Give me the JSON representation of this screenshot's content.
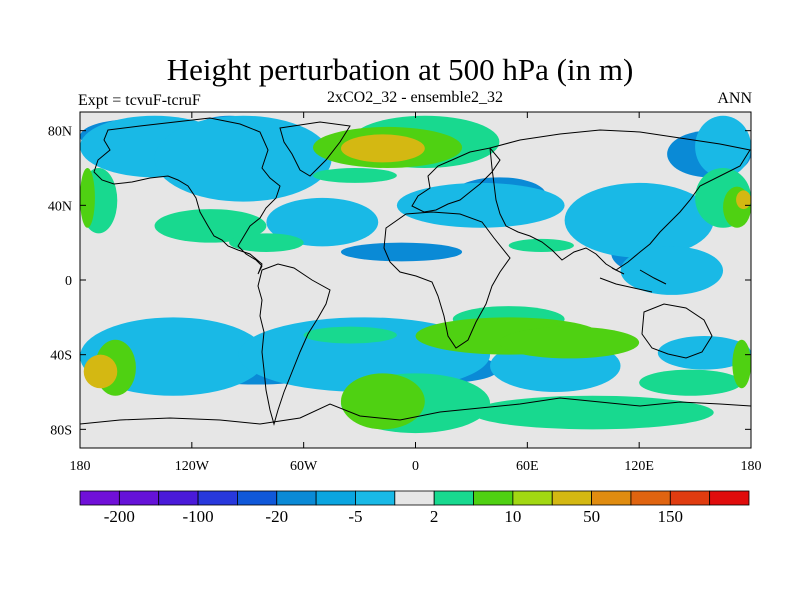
{
  "title": "Height perturbation at 500 hPa (in m)",
  "left_label": "Expt = tcvuF-tcruF",
  "center_label": "2xCO2_32 - ensemble2_32",
  "right_label": "ANN",
  "map": {
    "projection": "cylindrical-equidistant",
    "lon_range": [
      -180,
      180
    ],
    "lat_range": [
      -90,
      90
    ],
    "lat_ticks": [
      {
        "v": 80,
        "label": "80N"
      },
      {
        "v": 40,
        "label": "40N"
      },
      {
        "v": 0,
        "label": "0"
      },
      {
        "v": -40,
        "label": "40S"
      },
      {
        "v": -80,
        "label": "80S"
      }
    ],
    "lon_ticks": [
      {
        "v": -180,
        "label": "180"
      },
      {
        "v": -120,
        "label": "120W"
      },
      {
        "v": -60,
        "label": "60W"
      },
      {
        "v": 0,
        "label": "0"
      },
      {
        "v": 60,
        "label": "60E"
      },
      {
        "v": 120,
        "label": "120E"
      },
      {
        "v": 180,
        "label": "180"
      }
    ],
    "background_color": "#e6e6e6",
    "contour_fields": [
      {
        "level": "-20 to -5",
        "color": "#0a8ad6",
        "regions": [
          [
            -180,
            68,
            -125,
            86
          ],
          [
            -125,
            58,
            -75,
            88
          ],
          [
            -40,
            20,
            25,
            10
          ],
          [
            20,
            55,
            70,
            36
          ],
          [
            85,
            46,
            150,
            24
          ],
          [
            105,
            25,
            140,
            4
          ],
          [
            -130,
            -38,
            -40,
            -56
          ],
          [
            -10,
            -40,
            45,
            -55
          ],
          [
            135,
            55,
            180,
            80
          ]
        ]
      },
      {
        "level": "-5 to -2",
        "color": "#19b9e6",
        "regions": [
          [
            -180,
            55,
            -100,
            88
          ],
          [
            -140,
            42,
            -45,
            88
          ],
          [
            -80,
            44,
            -20,
            18
          ],
          [
            -10,
            52,
            80,
            28
          ],
          [
            80,
            52,
            160,
            12
          ],
          [
            110,
            18,
            165,
            -8
          ],
          [
            -180,
            -20,
            -80,
            -62
          ],
          [
            -95,
            -20,
            40,
            -60
          ],
          [
            40,
            -32,
            110,
            -60
          ],
          [
            150,
            55,
            180,
            88
          ],
          [
            -10,
            -60,
            20,
            -70
          ],
          [
            130,
            -30,
            180,
            -48
          ]
        ]
      },
      {
        "level": "2 to 10",
        "color": "#18d98f",
        "regions": [
          [
            -180,
            60,
            -160,
            25
          ],
          [
            -140,
            38,
            -80,
            20
          ],
          [
            -100,
            25,
            -60,
            15
          ],
          [
            -55,
            60,
            -10,
            52
          ],
          [
            -35,
            88,
            45,
            60
          ],
          [
            50,
            22,
            85,
            15
          ],
          [
            20,
            -14,
            80,
            -28
          ],
          [
            -60,
            -25,
            -10,
            -34
          ],
          [
            120,
            -48,
            175,
            -62
          ],
          [
            -40,
            -50,
            40,
            -82
          ],
          [
            30,
            -62,
            160,
            -80
          ],
          [
            150,
            60,
            180,
            28
          ]
        ]
      },
      {
        "level": "10 to 50",
        "color": "#4fd112",
        "regions": [
          [
            -180,
            60,
            -172,
            28
          ],
          [
            -172,
            -32,
            -150,
            -62
          ],
          [
            -40,
            -50,
            5,
            -80
          ],
          [
            0,
            -20,
            100,
            -40
          ],
          [
            45,
            -25,
            120,
            -42
          ],
          [
            165,
            50,
            180,
            28
          ],
          [
            170,
            -32,
            180,
            -58
          ],
          [
            -55,
            82,
            25,
            60
          ]
        ]
      },
      {
        "level": "50 to 150",
        "color": "#d4b812",
        "regions": [
          [
            -40,
            78,
            5,
            63
          ],
          [
            -178,
            -40,
            -160,
            -58
          ],
          [
            172,
            48,
            180,
            38
          ]
        ]
      }
    ],
    "coastline_color": "#000000"
  },
  "colorbar": {
    "colors": [
      "#7010d8",
      "#6512d8",
      "#4a1ad9",
      "#2838dc",
      "#1058d9",
      "#0a8ad6",
      "#0aa5e0",
      "#19b9e6",
      "#e6e6e6",
      "#18d98f",
      "#4fd112",
      "#a2d812",
      "#d4b812",
      "#e08c10",
      "#e06410",
      "#e03c10",
      "#e00c0c"
    ],
    "labels": [
      "-200",
      "-100",
      "-20",
      "-5",
      "2",
      "10",
      "50",
      "150"
    ]
  }
}
